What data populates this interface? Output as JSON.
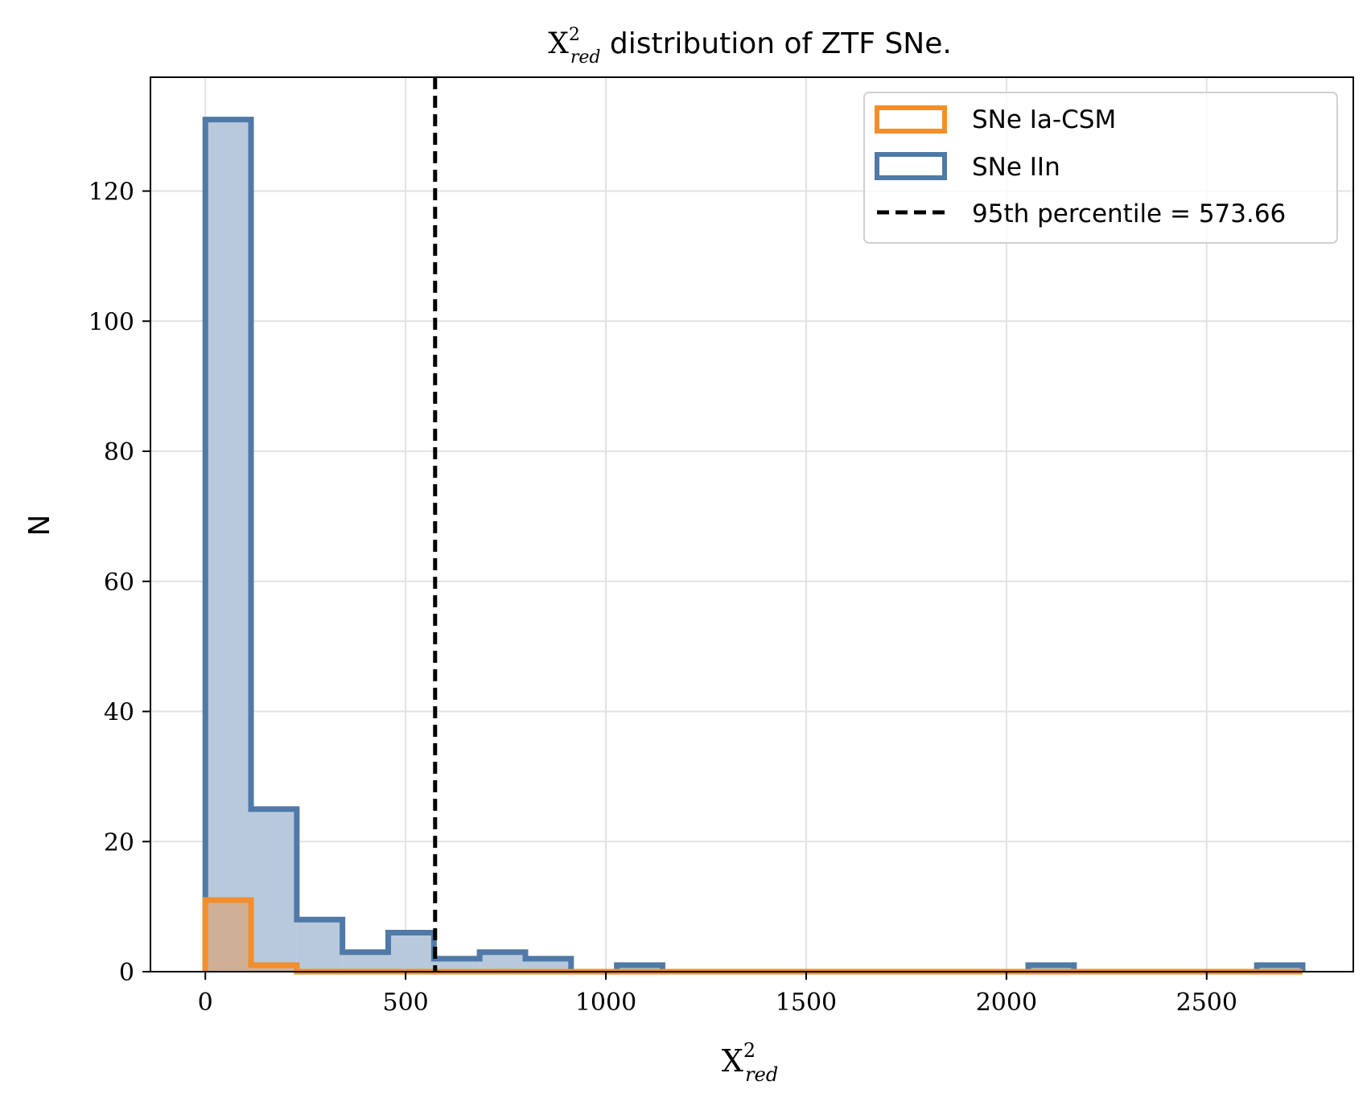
{
  "chart_data": {
    "type": "histogram",
    "title": {
      "symbol": "X",
      "superscript": "2",
      "subscript": "red",
      "text": " distribution of ZTF SNe."
    },
    "xlabel": {
      "symbol": "X",
      "superscript": "2",
      "subscript": "red"
    },
    "ylabel": "N",
    "xlim": [
      -137,
      2866
    ],
    "ylim": [
      0,
      137.5
    ],
    "xticks": [
      0,
      500,
      1000,
      1500,
      2000,
      2500
    ],
    "xtick_labels": [
      "0",
      "500",
      "1000",
      "1500",
      "2000",
      "2500"
    ],
    "yticks": [
      0,
      20,
      40,
      60,
      80,
      100,
      120
    ],
    "ytick_labels": [
      "0",
      "20",
      "40",
      "60",
      "80",
      "100",
      "120"
    ],
    "grid": true,
    "legend_position": "upper right",
    "series": [
      {
        "name": "SNe IIn",
        "color": "#4f79a7",
        "fill": "#b8c9dc",
        "bin_edges": [
          0,
          114.1,
          228.3,
          342.4,
          456.6,
          570.7,
          684.8,
          799.0,
          913.1,
          1027.3,
          1141.4,
          1255.5,
          1369.7,
          1483.8,
          1598.0,
          1712.1,
          1826.2,
          1940.4,
          2054.5,
          2168.7,
          2282.8,
          2396.9,
          2511.1,
          2625.2,
          2739.4
        ],
        "counts": [
          131,
          25,
          8,
          3,
          6,
          2,
          3,
          2,
          0,
          1,
          0,
          0,
          0,
          0,
          0,
          0,
          0,
          0,
          1,
          0,
          0,
          0,
          0,
          1
        ]
      },
      {
        "name": "SNe Ia-CSM",
        "color": "#f28e2b",
        "fill": "#cfb096",
        "bin_edges": [
          0,
          114.1,
          228.3,
          342.4,
          456.6,
          570.7,
          684.8,
          799.0,
          913.1,
          1027.3,
          1141.4,
          1255.5,
          1369.7,
          1483.8,
          1598.0,
          1712.1,
          1826.2,
          1940.4,
          2054.5,
          2168.7,
          2282.8,
          2396.9,
          2511.1,
          2625.2,
          2739.4
        ],
        "counts": [
          11,
          1,
          0,
          0,
          0,
          0,
          0,
          0,
          0,
          0,
          0,
          0,
          0,
          0,
          0,
          0,
          0,
          0,
          0,
          0,
          0,
          0,
          0,
          0
        ]
      }
    ],
    "reference_line": {
      "name": "95th percentile = 573.66",
      "x": 573.66,
      "color": "#000000",
      "style": "dashed"
    }
  }
}
